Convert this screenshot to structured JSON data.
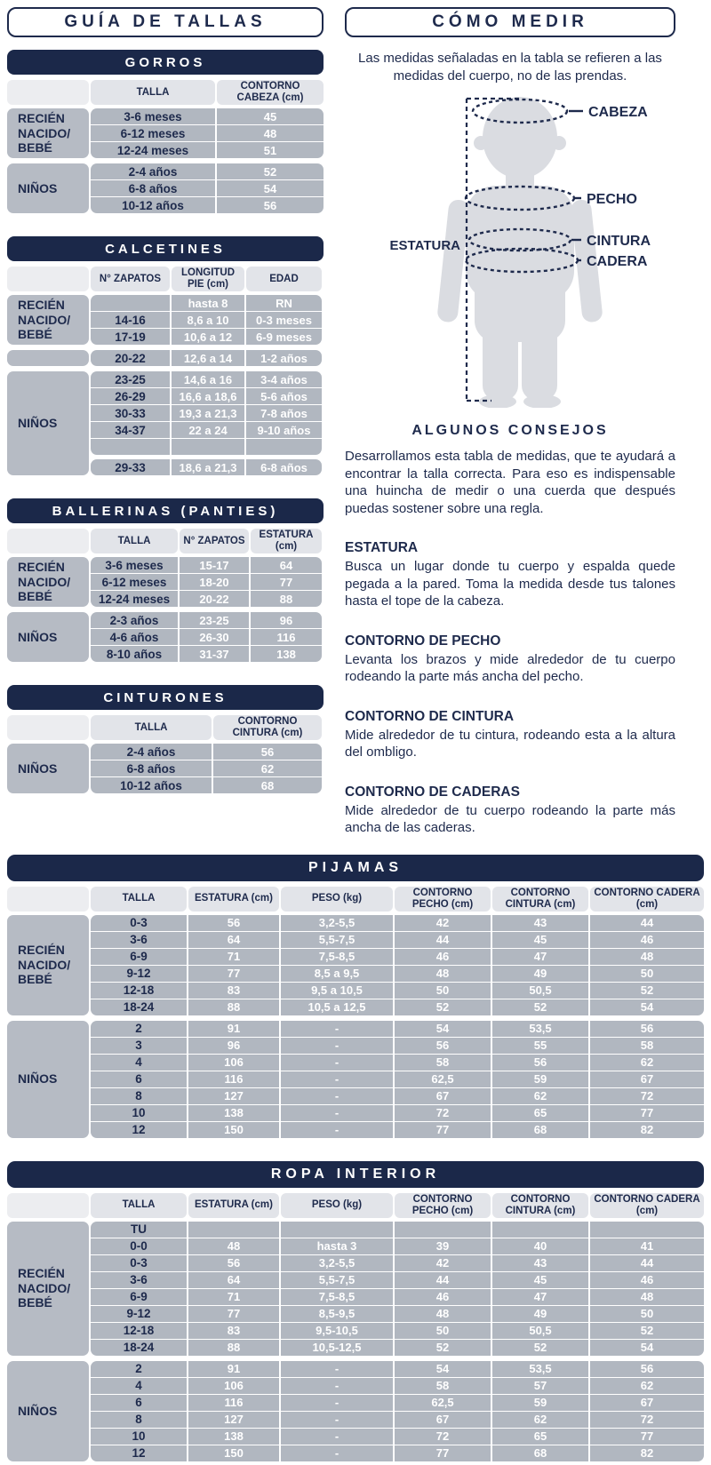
{
  "page": {
    "left_title": "GUÍA DE TALLAS",
    "right_title": "CÓMO MEDIR"
  },
  "como_medir": {
    "intro": "Las medidas señaladas en la tabla se refieren a las medidas del cuerpo, no de las prendas.",
    "labels": {
      "estatura": "ESTATURA",
      "cabeza": "CABEZA",
      "pecho": "PECHO",
      "cintura": "CINTURA",
      "cadera": "CADERA"
    },
    "consejos_title": "ALGUNOS CONSEJOS",
    "consejos_text": "Desarrollamos esta tabla de medidas, que te ayudará a encontrar la talla correcta. Para eso es indispensable una huincha de medir o una cuerda que después puedas sostener sobre una regla.",
    "sections": [
      {
        "title": "ESTATURA",
        "text": "Busca un lugar donde tu cuerpo y espalda quede pegada a la pared. Toma la medida desde tus talones hasta el tope de la cabeza."
      },
      {
        "title": "CONTORNO DE PECHO",
        "text": "Levanta los brazos y mide alrededor de tu cuerpo rodeando la parte más ancha del pecho."
      },
      {
        "title": "CONTORNO DE CINTURA",
        "text": "Mide alrededor de tu cintura, rodeando esta a la altura del ombligo."
      },
      {
        "title": "CONTORNO DE CADERAS",
        "text": "Mide alrededor de tu cuerpo rodeando la parte más ancha de las caderas."
      }
    ]
  },
  "colors": {
    "navy": "#1b2849",
    "cell_gray": "#b1b7c0",
    "header_gray": "#e2e4e9",
    "silhouette_gray": "#dadce1"
  },
  "tables": {
    "gorros": {
      "title": "GORROS",
      "columns": [
        "TALLA",
        "CONTORNO CABEZA (cm)"
      ],
      "bands": [
        {
          "label": "RECIÉN NACIDO/ BEBÉ",
          "rows": [
            [
              "3-6 meses",
              "45"
            ],
            [
              "6-12 meses",
              "48"
            ],
            [
              "12-24 meses",
              "51"
            ]
          ]
        },
        {
          "label": "NIÑOS",
          "rows": [
            [
              "2-4 años",
              "52"
            ],
            [
              "6-8 años",
              "54"
            ],
            [
              "10-12 años",
              "56"
            ]
          ]
        }
      ]
    },
    "calcetines": {
      "title": "CALCETINES",
      "columns": [
        "N° ZAPATOS",
        "LONGITUD PIE (cm)",
        "EDAD"
      ],
      "bands": [
        {
          "label": "RECIÉN NACIDO/ BEBÉ",
          "rows": [
            [
              "",
              "hasta 8",
              "RN"
            ],
            [
              "14-16",
              "8,6 a 10",
              "0-3 meses"
            ],
            [
              "17-19",
              "10,6 a 12",
              "6-9 meses"
            ]
          ]
        },
        {
          "label": "",
          "rows": [
            [
              "20-22",
              "12,6 a 14",
              "1-2 años"
            ]
          ]
        },
        {
          "label": "NIÑOS",
          "row_groups": [
            [
              [
                "23-25",
                "14,6 a 16",
                "3-4 años"
              ],
              [
                "26-29",
                "16,6 a 18,6",
                "5-6 años"
              ],
              [
                "30-33",
                "19,3 a 21,3",
                "7-8 años"
              ],
              [
                "34-37",
                "22 a 24",
                "9-10 años"
              ],
              [
                "",
                "",
                ""
              ]
            ],
            [
              [
                "29-33",
                "18,6 a 21,3",
                "6-8 años"
              ]
            ]
          ]
        }
      ]
    },
    "ballerinas": {
      "title": "BALLERINAS (PANTIES)",
      "columns": [
        "TALLA",
        "N° ZAPATOS",
        "ESTATURA (cm)"
      ],
      "bands": [
        {
          "label": "RECIÉN NACIDO/ BEBÉ",
          "rows": [
            [
              "3-6 meses",
              "15-17",
              "64"
            ],
            [
              "6-12 meses",
              "18-20",
              "77"
            ],
            [
              "12-24 meses",
              "20-22",
              "88"
            ]
          ]
        },
        {
          "label": "NIÑOS",
          "rows": [
            [
              "2-3 años",
              "23-25",
              "96"
            ],
            [
              "4-6 años",
              "26-30",
              "116"
            ],
            [
              "8-10 años",
              "31-37",
              "138"
            ]
          ]
        }
      ]
    },
    "cinturones": {
      "title": "CINTURONES",
      "columns": [
        "TALLA",
        "CONTORNO CINTURA (cm)"
      ],
      "bands": [
        {
          "label": "NIÑOS",
          "rows": [
            [
              "2-4 años",
              "56"
            ],
            [
              "6-8 años",
              "62"
            ],
            [
              "10-12 años",
              "68"
            ]
          ]
        }
      ]
    },
    "pijamas": {
      "title": "PIJAMAS",
      "columns": [
        "TALLA",
        "ESTATURA (cm)",
        "PESO (kg)",
        "CONTORNO PECHO (cm)",
        "CONTORNO CINTURA (cm)",
        "CONTORNO CADERA (cm)"
      ],
      "bands": [
        {
          "label": "RECIÉN NACIDO/ BEBÉ",
          "rows": [
            [
              "0-3",
              "56",
              "3,2-5,5",
              "42",
              "43",
              "44"
            ],
            [
              "3-6",
              "64",
              "5,5-7,5",
              "44",
              "45",
              "46"
            ],
            [
              "6-9",
              "71",
              "7,5-8,5",
              "46",
              "47",
              "48"
            ],
            [
              "9-12",
              "77",
              "8,5 a 9,5",
              "48",
              "49",
              "50"
            ],
            [
              "12-18",
              "83",
              "9,5 a 10,5",
              "50",
              "50,5",
              "52"
            ],
            [
              "18-24",
              "88",
              "10,5 a 12,5",
              "52",
              "52",
              "54"
            ]
          ]
        },
        {
          "label": "NIÑOS",
          "rows": [
            [
              "2",
              "91",
              "-",
              "54",
              "53,5",
              "56"
            ],
            [
              "3",
              "96",
              "-",
              "56",
              "55",
              "58"
            ],
            [
              "4",
              "106",
              "-",
              "58",
              "56",
              "62"
            ],
            [
              "6",
              "116",
              "-",
              "62,5",
              "59",
              "67"
            ],
            [
              "8",
              "127",
              "-",
              "67",
              "62",
              "72"
            ],
            [
              "10",
              "138",
              "-",
              "72",
              "65",
              "77"
            ],
            [
              "12",
              "150",
              "-",
              "77",
              "68",
              "82"
            ]
          ]
        }
      ]
    },
    "ropa_interior": {
      "title": "ROPA INTERIOR",
      "columns": [
        "TALLA",
        "ESTATURA (cm)",
        "PESO (kg)",
        "CONTORNO PECHO (cm)",
        "CONTORNO CINTURA (cm)",
        "CONTORNO CADERA (cm)"
      ],
      "bands": [
        {
          "label": "RECIÉN NACIDO/ BEBÉ",
          "rows": [
            [
              "TU",
              "",
              "",
              "",
              "",
              ""
            ],
            [
              "0-0",
              "48",
              "hasta 3",
              "39",
              "40",
              "41"
            ],
            [
              "0-3",
              "56",
              "3,2-5,5",
              "42",
              "43",
              "44"
            ],
            [
              "3-6",
              "64",
              "5,5-7,5",
              "44",
              "45",
              "46"
            ],
            [
              "6-9",
              "71",
              "7,5-8,5",
              "46",
              "47",
              "48"
            ],
            [
              "9-12",
              "77",
              "8,5-9,5",
              "48",
              "49",
              "50"
            ],
            [
              "12-18",
              "83",
              "9,5-10,5",
              "50",
              "50,5",
              "52"
            ],
            [
              "18-24",
              "88",
              "10,5-12,5",
              "52",
              "52",
              "54"
            ]
          ]
        },
        {
          "label": "NIÑOS",
          "rows": [
            [
              "2",
              "91",
              "-",
              "54",
              "53,5",
              "56"
            ],
            [
              "4",
              "106",
              "-",
              "58",
              "57",
              "62"
            ],
            [
              "6",
              "116",
              "-",
              "62,5",
              "59",
              "67"
            ],
            [
              "8",
              "127",
              "-",
              "67",
              "62",
              "72"
            ],
            [
              "10",
              "138",
              "-",
              "72",
              "65",
              "77"
            ],
            [
              "12",
              "150",
              "-",
              "77",
              "68",
              "82"
            ]
          ]
        }
      ]
    }
  }
}
